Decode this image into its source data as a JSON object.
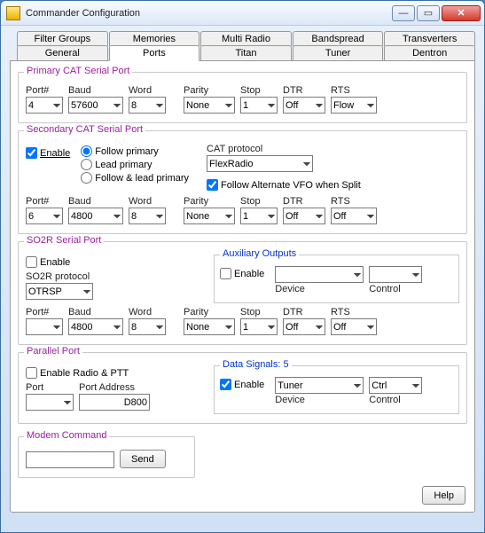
{
  "window": {
    "title": "Commander Configuration"
  },
  "tabs_row1": [
    "Filter Groups",
    "Memories",
    "Multi Radio",
    "Bandspread",
    "Transverters"
  ],
  "tabs_row2": [
    "General",
    "Ports",
    "Titan",
    "Tuner",
    "Dentron"
  ],
  "active_tab": "Ports",
  "primary": {
    "legend": "Primary CAT Serial Port",
    "port_label": "Port#",
    "port": "4",
    "baud_label": "Baud",
    "baud": "57600",
    "word_label": "Word",
    "word": "8",
    "parity_label": "Parity",
    "parity": "None",
    "stop_label": "Stop",
    "stop": "1",
    "dtr_label": "DTR",
    "dtr": "Off",
    "rts_label": "RTS",
    "rts": "Flow"
  },
  "secondary": {
    "legend": "Secondary CAT Serial Port",
    "enable": "Enable",
    "enable_checked": true,
    "r_follow": "Follow primary",
    "r_lead": "Lead primary",
    "r_followlead": "Follow & lead primary",
    "r_selected": "follow",
    "cat_label": "CAT protocol",
    "cat": "FlexRadio",
    "alt_vfo": "Follow Alternate VFO when Split",
    "alt_vfo_checked": true,
    "port_label": "Port#",
    "port": "6",
    "baud_label": "Baud",
    "baud": "4800",
    "word_label": "Word",
    "word": "8",
    "parity_label": "Parity",
    "parity": "None",
    "stop_label": "Stop",
    "stop": "1",
    "dtr_label": "DTR",
    "dtr": "Off",
    "rts_label": "RTS",
    "rts": "Off"
  },
  "so2r": {
    "legend": "SO2R Serial Port",
    "enable": "Enable",
    "enable_checked": false,
    "proto_label": "SO2R protocol",
    "proto": "OTRSP",
    "aux": {
      "legend": "Auxiliary Outputs",
      "enable": "Enable",
      "enable_checked": false,
      "device_label": "Device",
      "device": "",
      "control_label": "Control",
      "control": ""
    },
    "port_label": "Port#",
    "port": "",
    "baud_label": "Baud",
    "baud": "4800",
    "word_label": "Word",
    "word": "8",
    "parity_label": "Parity",
    "parity": "None",
    "stop_label": "Stop",
    "stop": "1",
    "dtr_label": "DTR",
    "dtr": "Off",
    "rts_label": "RTS",
    "rts": "Off"
  },
  "parallel": {
    "legend": "Parallel Port",
    "enable": "Enable Radio & PTT",
    "enable_checked": false,
    "port_label": "Port",
    "port": "",
    "addr_label": "Port Address",
    "addr": "D800",
    "signals": {
      "legend": "Data Signals: 5",
      "enable": "Enable",
      "enable_checked": true,
      "device_label": "Device",
      "device": "Tuner",
      "control_label": "Control",
      "control": "Ctrl"
    }
  },
  "modem": {
    "legend": "Modem Command",
    "value": "",
    "send": "Send"
  },
  "help": "Help"
}
